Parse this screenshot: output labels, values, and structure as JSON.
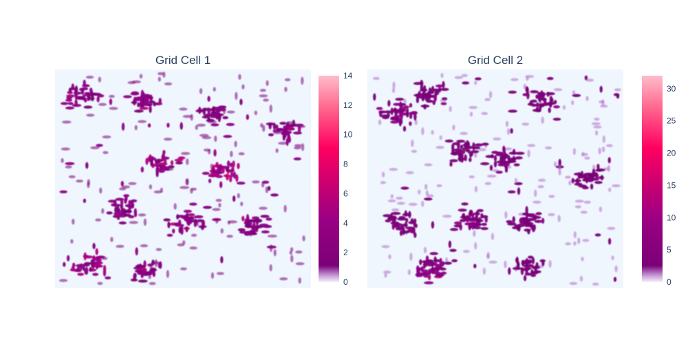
{
  "colors": {
    "plot_background": "#eff6fe",
    "paper_background": "#ffffff",
    "text": "#2a3f5f",
    "colorscale": [
      "#f3e6fb",
      "#7a0177",
      "#ae017e",
      "#dd3497",
      "#ff0066",
      "#ffb3c6"
    ]
  },
  "chart_data": [
    {
      "type": "heatmap",
      "title": "Grid Cell 1",
      "xlabel": "",
      "ylabel": "",
      "axes_visible": false,
      "colorbar": {
        "min": 0,
        "max": 14,
        "ticks": [
          "0",
          "2",
          "4",
          "6",
          "8",
          "10",
          "12",
          "14"
        ]
      },
      "clusters": [
        {
          "x": 0.1,
          "y": 0.88,
          "level": 4
        },
        {
          "x": 0.36,
          "y": 0.85,
          "level": 4
        },
        {
          "x": 0.62,
          "y": 0.8,
          "level": 3
        },
        {
          "x": 0.9,
          "y": 0.72,
          "level": 4
        },
        {
          "x": 0.42,
          "y": 0.57,
          "level": 5
        },
        {
          "x": 0.66,
          "y": 0.53,
          "level": 6
        },
        {
          "x": 0.27,
          "y": 0.36,
          "level": 4
        },
        {
          "x": 0.52,
          "y": 0.31,
          "level": 4
        },
        {
          "x": 0.78,
          "y": 0.28,
          "level": 4
        },
        {
          "x": 0.14,
          "y": 0.11,
          "level": 5
        },
        {
          "x": 0.36,
          "y": 0.08,
          "level": 4
        }
      ]
    },
    {
      "type": "heatmap",
      "title": "Grid Cell 2",
      "xlabel": "",
      "ylabel": "",
      "axes_visible": false,
      "colorbar": {
        "min": 0,
        "max": 32,
        "ticks": [
          "0",
          "5",
          "10",
          "15",
          "20",
          "25",
          "30"
        ]
      },
      "clusters": [
        {
          "x": 0.12,
          "y": 0.8,
          "level": 8
        },
        {
          "x": 0.24,
          "y": 0.88,
          "level": 6
        },
        {
          "x": 0.69,
          "y": 0.86,
          "level": 6
        },
        {
          "x": 0.38,
          "y": 0.63,
          "level": 5
        },
        {
          "x": 0.53,
          "y": 0.59,
          "level": 6
        },
        {
          "x": 0.86,
          "y": 0.5,
          "level": 5
        },
        {
          "x": 0.14,
          "y": 0.3,
          "level": 6
        },
        {
          "x": 0.41,
          "y": 0.31,
          "level": 8
        },
        {
          "x": 0.63,
          "y": 0.31,
          "level": 6
        },
        {
          "x": 0.24,
          "y": 0.09,
          "level": 10
        },
        {
          "x": 0.62,
          "y": 0.1,
          "level": 4
        }
      ]
    }
  ]
}
